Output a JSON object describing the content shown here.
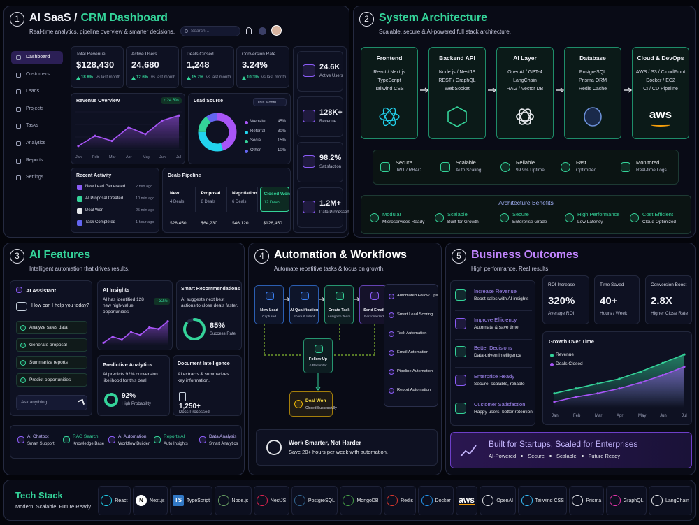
{
  "dashboard": {
    "number": "1",
    "title_a": "AI SaaS /",
    "title_b": "CRM Dashboard",
    "subtitle": "Real-time analytics, pipeline overview & smarter decisions.",
    "search": "Search...",
    "nav": [
      "Dashboard",
      "Customers",
      "Leads",
      "Projects",
      "Tasks",
      "Analytics",
      "Reports",
      "Settings"
    ],
    "kpis": [
      {
        "label": "Total Revenue",
        "value": "$128,430",
        "change": "18.8%",
        "note": "vs last month"
      },
      {
        "label": "Active Users",
        "value": "24,680",
        "change": "12.6%",
        "note": "vs last month"
      },
      {
        "label": "Deals Closed",
        "value": "1,248",
        "change": "15.7%",
        "note": "vs last month"
      },
      {
        "label": "Conversion Rate",
        "value": "3.24%",
        "change": "10.3%",
        "note": "vs last month"
      }
    ],
    "revenue_overview": {
      "type": "line",
      "title": "Revenue Overview",
      "badge": "↑ 24.6%",
      "categories": [
        "Jan",
        "Feb",
        "Mar",
        "Apr",
        "May",
        "Jun",
        "Jul"
      ],
      "values": [
        22,
        34,
        28,
        44,
        36,
        52,
        58
      ],
      "color": "#a855f7"
    },
    "lead_source": {
      "type": "pie",
      "title": "Lead Source",
      "filter": "This Month",
      "categories": [
        "Website",
        "Referral",
        "Social",
        "Other"
      ],
      "values": [
        45,
        30,
        15,
        10
      ],
      "value_labels": [
        "45%",
        "30%",
        "15%",
        "10%"
      ],
      "colors": [
        "#a855f7",
        "#22d3ee",
        "#34d399",
        "#6366f1"
      ]
    },
    "recent_activity": {
      "title": "Recent Activity",
      "items": [
        {
          "text": "New Lead Generated",
          "time": "2 min ago"
        },
        {
          "text": "AI Proposal Created",
          "time": "10 min ago"
        },
        {
          "text": "Deal Won",
          "time": "25 min ago"
        },
        {
          "text": "Task Completed",
          "time": "1 hour ago"
        }
      ]
    },
    "pipeline": {
      "title": "Deals Pipeline",
      "stages": [
        {
          "name": "New",
          "count": "4 Deals",
          "amount": "$28,450"
        },
        {
          "name": "Proposal",
          "count": "8 Deals",
          "amount": "$64,230"
        },
        {
          "name": "Negotiation",
          "count": "6 Deals",
          "amount": "$46,120"
        },
        {
          "name": "Closed Won",
          "count": "12 Deals",
          "amount": "$128,450"
        }
      ]
    },
    "stats": [
      {
        "value": "24.6K",
        "label": "Active Users"
      },
      {
        "value": "128K+",
        "label": "Revenue"
      },
      {
        "value": "98.2%",
        "label": "Satisfaction"
      },
      {
        "value": "1.2M+",
        "label": "Data Processed"
      }
    ]
  },
  "architecture": {
    "number": "2",
    "title": "System Architecture",
    "subtitle": "Scalable, secure & AI-powered full stack architecture.",
    "layers": [
      {
        "name": "Frontend",
        "items": [
          "React / Next.js",
          "TypeScript",
          "Tailwind CSS"
        ]
      },
      {
        "name": "Backend API",
        "items": [
          "Node.js / NestJS",
          "REST / GraphQL",
          "WebSocket"
        ]
      },
      {
        "name": "AI Layer",
        "items": [
          "OpenAI / GPT-4",
          "LangChain",
          "RAG / Vector DB"
        ]
      },
      {
        "name": "Database",
        "items": [
          "PostgreSQL",
          "Prisma ORM",
          "Redis Cache"
        ]
      },
      {
        "name": "Cloud & DevOps",
        "items": [
          "AWS / S3 / CloudFront",
          "Docker / EC2",
          "CI / CD Pipeline"
        ],
        "logo": "aws"
      }
    ],
    "features": [
      {
        "name": "Secure",
        "detail": "JWT / RBAC"
      },
      {
        "name": "Scalable",
        "detail": "Auto Scaling"
      },
      {
        "name": "Reliable",
        "detail": "99.9% Uptime"
      },
      {
        "name": "Fast",
        "detail": "Optimized"
      },
      {
        "name": "Monitored",
        "detail": "Real-time Logs"
      }
    ],
    "benefits_title": "Architecture Benefits",
    "benefits": [
      {
        "name": "Modular",
        "detail": "Microservices Ready"
      },
      {
        "name": "Scalable",
        "detail": "Built for Growth"
      },
      {
        "name": "Secure",
        "detail": "Enterprise Grade"
      },
      {
        "name": "High Performance",
        "detail": "Low Latency"
      },
      {
        "name": "Cost Efficient",
        "detail": "Cloud Optimized"
      }
    ]
  },
  "ai_features": {
    "number": "3",
    "title": "AI Features",
    "subtitle": "Intelligent automation that drives results.",
    "assistant": {
      "title": "AI Assistant",
      "prompt": "How can I help you today?",
      "options": [
        "Analyze sales data",
        "Generate proposal",
        "Summarize reports",
        "Predict opportunities"
      ],
      "input": "Ask anything..."
    },
    "insights": {
      "type": "line",
      "title": "AI Insights",
      "text": "AI has identified 128 new high-value opportunities",
      "badge": "↑ 32%",
      "values": [
        12,
        20,
        16,
        26,
        22,
        32,
        30,
        40
      ],
      "color": "#a855f7"
    },
    "recommendations": {
      "title": "Smart Recommendations",
      "text": "AI suggests next best actions to close deals faster.",
      "score": {
        "value": 85,
        "label": "85%"
      },
      "caption": "Success Rate"
    },
    "predictive": {
      "title": "Predictive Analytics",
      "text": "AI predicts 92% conversion likelihood for this deal.",
      "score": {
        "value": 92,
        "label": "92%"
      },
      "caption": "High Probability"
    },
    "document": {
      "title": "Document Intelligence",
      "text": "AI extracts & summarizes key information.",
      "value": "1,250+",
      "caption": "Docs Processed"
    },
    "tools": [
      {
        "name": "AI Chatbot",
        "detail": "Smart Support"
      },
      {
        "name": "RAG Search",
        "detail": "Knowledge Base"
      },
      {
        "name": "AI Automation",
        "detail": "Workflow Builder"
      },
      {
        "name": "Reports AI",
        "detail": "Auto Insights"
      },
      {
        "name": "Data Analysis",
        "detail": "Smart Analytics"
      }
    ]
  },
  "automation": {
    "number": "4",
    "title": "Automation & Workflows",
    "subtitle": "Automate repetitive tasks & focus on growth.",
    "steps": [
      {
        "name": "New Lead",
        "detail": "Captured"
      },
      {
        "name": "AI Qualification",
        "detail": "Score & Intent"
      },
      {
        "name": "Create Task",
        "detail": "Assign to Team"
      },
      {
        "name": "Send Email",
        "detail": "Personalized"
      },
      {
        "name": "Follow Up",
        "detail": "& Reminder"
      },
      {
        "name": "Deal Won",
        "detail": "Closed Successfully"
      }
    ],
    "checklist": [
      "Automated Follow Ups",
      "Smart Lead Scoring",
      "Task Automation",
      "Email Automation",
      "Pipeline Automation",
      "Report Automation"
    ],
    "banner": {
      "title": "Work Smarter, Not Harder",
      "text": "Save 20+ hours per week with automation."
    }
  },
  "outcomes": {
    "number": "5",
    "title": "Business Outcomes",
    "subtitle": "High performance. Real results.",
    "items": [
      {
        "name": "Increase Revenue",
        "detail": "Boost sales with AI insights"
      },
      {
        "name": "Improve Efficiency",
        "detail": "Automate & save time"
      },
      {
        "name": "Better Decisions",
        "detail": "Data-driven intelligence"
      },
      {
        "name": "Enterprise Ready",
        "detail": "Secure, scalable, reliable"
      },
      {
        "name": "Customer Satisfaction",
        "detail": "Happy users, better retention"
      }
    ],
    "metrics": [
      {
        "label": "ROI Increase",
        "value": "320%",
        "caption": "Average ROI"
      },
      {
        "label": "Time Saved",
        "value": "40+",
        "caption": "Hours / Week"
      },
      {
        "label": "Conversion Boost",
        "value": "2.8X",
        "caption": "Higher Close Rate"
      }
    ],
    "growth": {
      "type": "line",
      "title": "Growth Over Time",
      "categories": [
        "Jan",
        "Feb",
        "Mar",
        "Apr",
        "May",
        "Jun",
        "Jul"
      ],
      "series": [
        {
          "name": "Revenue",
          "color": "#34d399",
          "values": [
            22,
            30,
            38,
            46,
            58,
            72,
            86
          ]
        },
        {
          "name": "Deals Closed",
          "color": "#a855f7",
          "values": [
            8,
            16,
            22,
            30,
            40,
            52,
            66
          ]
        }
      ]
    },
    "banner": {
      "title": "Built for Startups, Scaled for Enterprises",
      "tags": [
        "AI-Powered",
        "Secure",
        "Scalable",
        "Future Ready"
      ]
    }
  },
  "tech_stack": {
    "title": "Tech Stack",
    "subtitle": "Modern. Scalable. Future Ready.",
    "items": [
      {
        "name": "React"
      },
      {
        "name": "Next.js",
        "icon": "N"
      },
      {
        "name": "TypeScript",
        "icon": "TS"
      },
      {
        "name": "Node.js"
      },
      {
        "name": "NestJS"
      },
      {
        "name": "PostgreSQL"
      },
      {
        "name": "MongoDB"
      },
      {
        "name": "Redis"
      },
      {
        "name": "Docker"
      },
      {
        "name": "aws"
      },
      {
        "name": "OpenAI"
      },
      {
        "name": "Tailwind CSS"
      },
      {
        "name": "Prisma"
      },
      {
        "name": "GraphQL"
      },
      {
        "name": "LangChain"
      }
    ]
  }
}
